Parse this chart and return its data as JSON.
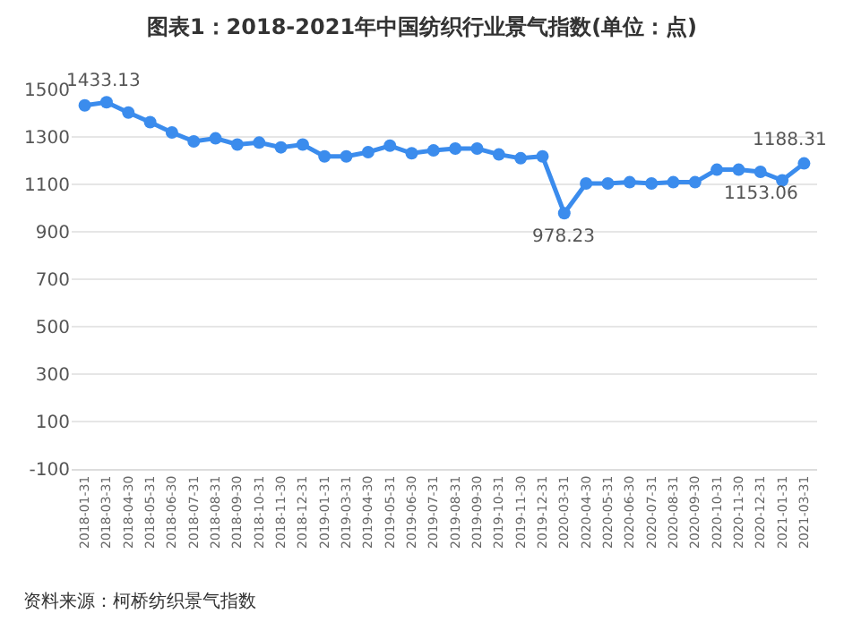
{
  "chart_data": {
    "type": "line",
    "title": "图表1：2018-2021年中国纺织行业景气指数(单位：点)",
    "categories": [
      "2018-01-31",
      "2018-03-31",
      "2018-04-30",
      "2018-05-31",
      "2018-06-30",
      "2018-07-31",
      "2018-08-31",
      "2018-09-30",
      "2018-10-31",
      "2018-11-30",
      "2018-12-31",
      "2019-01-31",
      "2019-03-31",
      "2019-04-30",
      "2019-05-31",
      "2019-06-30",
      "2019-07-31",
      "2019-08-31",
      "2019-09-30",
      "2019-10-31",
      "2019-11-30",
      "2019-12-31",
      "2020-03-31",
      "2020-04-30",
      "2020-05-31",
      "2020-06-30",
      "2020-07-31",
      "2020-08-31",
      "2020-09-30",
      "2020-10-31",
      "2020-11-30",
      "2020-12-31",
      "2021-01-31",
      "2021-03-31"
    ],
    "series": [
      {
        "color": "#3b8ced",
        "values": [
          1433.13,
          1446,
          1403,
          1362,
          1319,
          1281,
          1294,
          1268,
          1276,
          1256,
          1268,
          1218,
          1218,
          1236,
          1263,
          1231,
          1243,
          1251,
          1251,
          1226,
          1210,
          1218,
          978.23,
          1104,
          1104,
          1109,
          1104,
          1109,
          1109,
          1162,
          1162,
          1153.06,
          1117,
          1188.31
        ],
        "value_labels": [
          "1433.13",
          null,
          null,
          null,
          null,
          null,
          null,
          null,
          null,
          null,
          null,
          null,
          null,
          null,
          null,
          null,
          null,
          null,
          null,
          null,
          null,
          null,
          "978.23",
          null,
          null,
          null,
          null,
          null,
          null,
          null,
          null,
          "1153.06",
          null,
          "1188.31"
        ]
      }
    ],
    "ylim": [
      -100,
      1500
    ],
    "yticks": [
      -100,
      100,
      300,
      500,
      700,
      900,
      1100,
      1300,
      1500
    ],
    "grid": "y",
    "marker": "circle",
    "line_style": "solid",
    "annotations": [
      "资料来源：柯桥纺织景气指数"
    ]
  }
}
